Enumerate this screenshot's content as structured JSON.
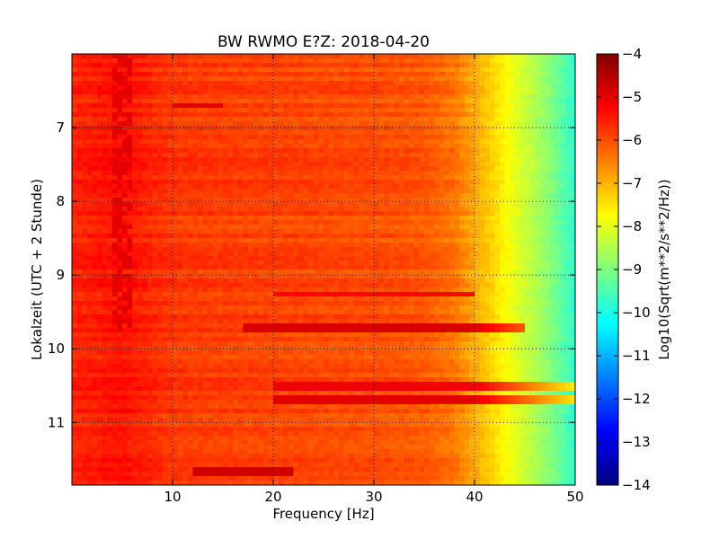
{
  "chart_data": {
    "type": "heatmap",
    "title": "BW RWMO E?Z: 2018-04-20",
    "xlabel": "Frequency [Hz]",
    "ylabel": "Lokalzeit (UTC + 2 Stunde)",
    "xlim": [
      0,
      50
    ],
    "ylim": [
      11.85,
      6.0
    ],
    "x_ticks": [
      10,
      20,
      30,
      40,
      50
    ],
    "x_tick_labels": [
      "10",
      "20",
      "30",
      "40",
      "50"
    ],
    "y_ticks": [
      7,
      8,
      9,
      10,
      11
    ],
    "y_tick_labels": [
      "7",
      "8",
      "9",
      "10",
      "11"
    ],
    "grid": true,
    "y_axis_inverted": true,
    "colormap": "jet",
    "colorbar": {
      "label": "Log10(Sqrt(m**2/s**2/Hz))",
      "range": [
        -14,
        -4
      ],
      "ticks": [
        -4,
        -5,
        -6,
        -7,
        -8,
        -9,
        -10,
        -11,
        -12,
        -13,
        -14
      ],
      "tick_labels": [
        "−4",
        "−5",
        "−6",
        "−7",
        "−8",
        "−9",
        "−10",
        "−11",
        "−12",
        "−13",
        "−14"
      ]
    },
    "spectrum_profile": {
      "frequency_hz": [
        0,
        5,
        10,
        20,
        30,
        35,
        38,
        40,
        42,
        44,
        46,
        48,
        50
      ],
      "log10_amplitude": [
        -5.6,
        -5.4,
        -5.8,
        -5.9,
        -6.0,
        -6.1,
        -6.4,
        -6.9,
        -7.4,
        -8.0,
        -8.5,
        -9.1,
        -9.8
      ]
    },
    "horizontal_bands": [
      {
        "time": 6.7,
        "freq_range": [
          10,
          15
        ],
        "value": -5.0
      },
      {
        "time": 9.25,
        "freq_range": [
          20,
          40
        ],
        "value": -5.3
      },
      {
        "time": 9.7,
        "freq_range": [
          17,
          45
        ],
        "value": -4.9
      },
      {
        "time": 10.5,
        "freq_range": [
          20,
          50
        ],
        "value": -5.1
      },
      {
        "time": 10.68,
        "freq_range": [
          20,
          50
        ],
        "value": -5.0
      },
      {
        "time": 11.65,
        "freq_range": [
          12,
          22
        ],
        "value": -4.8
      }
    ],
    "vertical_bands": [
      {
        "freq_range": [
          4,
          6
        ],
        "time_range": [
          6.0,
          9.8
        ],
        "value": -5.0
      }
    ]
  }
}
